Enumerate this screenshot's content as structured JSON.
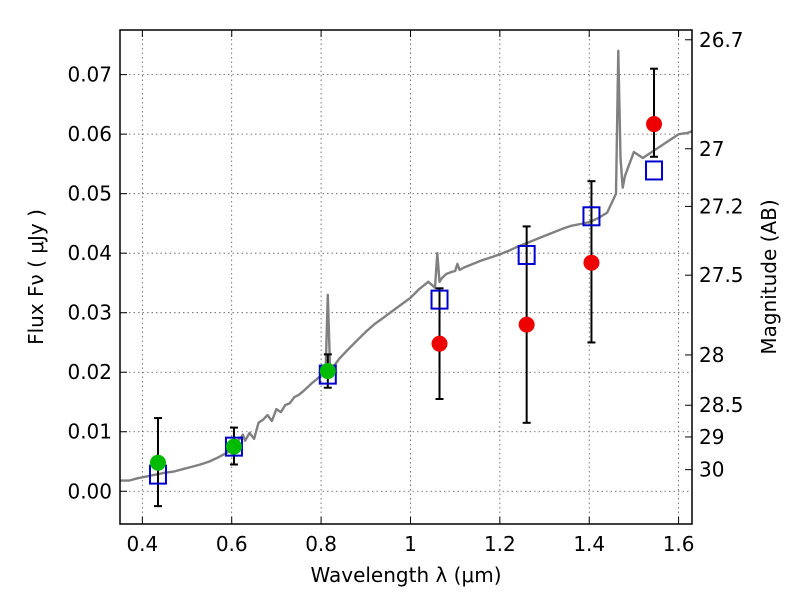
{
  "chart_data": {
    "type": "scatter",
    "title": "",
    "xlabel": "Wavelength  λ (μm)",
    "ylabel": "Flux  Fν  ( μJy )",
    "y2label": "Magnitude (AB)",
    "xlim": [
      0.35,
      1.63
    ],
    "ylim": [
      -0.0055,
      0.0775
    ],
    "grid": true,
    "x_ticks": [
      0.4,
      0.6,
      0.8,
      1.0,
      1.2,
      1.4,
      1.6
    ],
    "x_tick_labels": [
      "0.4",
      "0.6",
      "0.8",
      "1",
      "1.2",
      "1.4",
      "1.6"
    ],
    "y_ticks": [
      0.0,
      0.01,
      0.02,
      0.03,
      0.04,
      0.05,
      0.06,
      0.07
    ],
    "y_tick_labels": [
      "0.00",
      "0.01",
      "0.02",
      "0.03",
      "0.04",
      "0.05",
      "0.06",
      "0.07"
    ],
    "mag_ticks": [
      26.7,
      27,
      27.2,
      27.5,
      28,
      28.5,
      29,
      30
    ],
    "mag_tick_labels": [
      "26.7",
      "27",
      "27.2",
      "27.5",
      "28",
      "28.5",
      "29",
      "30"
    ],
    "colors": {
      "spectrum": "#808080",
      "model_squares": "#0000cc",
      "green_points": "#00bb00",
      "red_points": "#ee0000",
      "errorbars": "#000000"
    },
    "spectrum": {
      "x": [
        0.35,
        0.37,
        0.39,
        0.41,
        0.43,
        0.45,
        0.47,
        0.49,
        0.51,
        0.53,
        0.55,
        0.57,
        0.59,
        0.6,
        0.61,
        0.62,
        0.625,
        0.63,
        0.64,
        0.65,
        0.66,
        0.67,
        0.68,
        0.69,
        0.7,
        0.71,
        0.72,
        0.73,
        0.74,
        0.75,
        0.76,
        0.77,
        0.78,
        0.79,
        0.8,
        0.81,
        0.815,
        0.82,
        0.825,
        0.83,
        0.84,
        0.86,
        0.88,
        0.9,
        0.92,
        0.94,
        0.96,
        0.98,
        1.0,
        1.02,
        1.04,
        1.055,
        1.06,
        1.065,
        1.07,
        1.08,
        1.09,
        1.1,
        1.105,
        1.11,
        1.12,
        1.14,
        1.16,
        1.18,
        1.2,
        1.22,
        1.24,
        1.26,
        1.28,
        1.3,
        1.32,
        1.34,
        1.36,
        1.38,
        1.4,
        1.42,
        1.44,
        1.46,
        1.465,
        1.47,
        1.475,
        1.48,
        1.49,
        1.5,
        1.52,
        1.54,
        1.56,
        1.58,
        1.6,
        1.62,
        1.63
      ],
      "y": [
        0.0018,
        0.0018,
        0.0022,
        0.0025,
        0.0028,
        0.0031,
        0.0033,
        0.0037,
        0.0041,
        0.0045,
        0.005,
        0.0057,
        0.0065,
        0.0075,
        0.0082,
        0.009,
        0.0095,
        0.0085,
        0.0098,
        0.0088,
        0.0115,
        0.012,
        0.0128,
        0.0118,
        0.0138,
        0.0133,
        0.0145,
        0.0148,
        0.0158,
        0.0162,
        0.0168,
        0.0175,
        0.0182,
        0.0188,
        0.0195,
        0.0201,
        0.033,
        0.021,
        0.0205,
        0.0212,
        0.0222,
        0.0238,
        0.0253,
        0.0268,
        0.0281,
        0.0292,
        0.0303,
        0.0314,
        0.0325,
        0.034,
        0.0352,
        0.0342,
        0.04,
        0.0352,
        0.0358,
        0.0365,
        0.0368,
        0.037,
        0.0382,
        0.0372,
        0.0376,
        0.0382,
        0.0388,
        0.0393,
        0.0398,
        0.0404,
        0.0411,
        0.0417,
        0.0423,
        0.0429,
        0.0435,
        0.0441,
        0.0446,
        0.0449,
        0.0452,
        0.0459,
        0.0468,
        0.05,
        0.074,
        0.056,
        0.051,
        0.053,
        0.055,
        0.057,
        0.056,
        0.057,
        0.058,
        0.059,
        0.06,
        0.0602,
        0.0605
      ]
    },
    "model_squares": {
      "x": [
        0.435,
        0.605,
        0.815,
        1.065,
        1.26,
        1.405,
        1.545
      ],
      "y": [
        0.0028,
        0.0075,
        0.0196,
        0.0322,
        0.0397,
        0.0462,
        0.0539
      ]
    },
    "green_points": {
      "x": [
        0.435,
        0.605,
        0.815
      ],
      "y": [
        0.0048,
        0.0075,
        0.0202
      ],
      "err_low": [
        0.0073,
        0.003,
        0.0028
      ],
      "err_high": [
        0.0075,
        0.0032,
        0.0028
      ]
    },
    "red_points": {
      "x": [
        1.065,
        1.26,
        1.405,
        1.545
      ],
      "y": [
        0.0248,
        0.028,
        0.0384,
        0.0617
      ],
      "err_low": [
        0.0093,
        0.0165,
        0.0134,
        0.0055
      ],
      "err_high": [
        0.0093,
        0.0165,
        0.0137,
        0.0093
      ]
    }
  }
}
